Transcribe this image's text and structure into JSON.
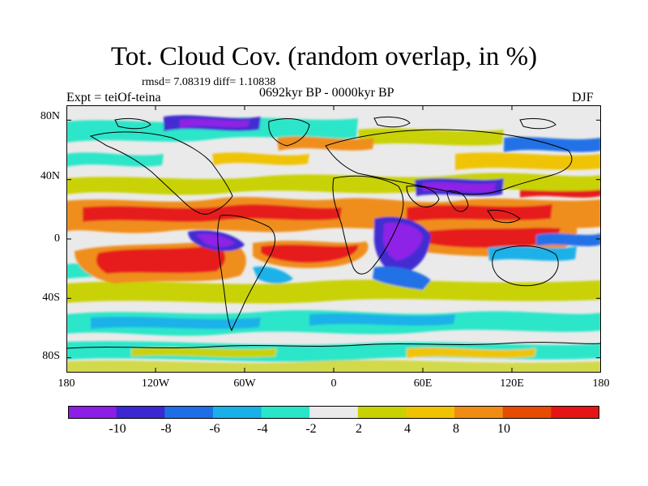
{
  "header": {
    "title": "Tot. Cloud Cov. (random overlap, in %)",
    "stats": "rmsd= 7.08319 diff= 1.10838",
    "experiment": "Expt = teiOf-teina",
    "period": "0692kyr BP - 0000kyr BP",
    "season": "DJF"
  },
  "axes": {
    "y_ticks": [
      "80N",
      "40N",
      "0",
      "40S",
      "80S"
    ],
    "x_ticks": [
      "180",
      "120W",
      "60W",
      "0",
      "60E",
      "120E",
      "180"
    ]
  },
  "colorbar": {
    "colors": [
      "#8c1ee6",
      "#3c28d2",
      "#1e6ee6",
      "#18b0e8",
      "#28e6c8",
      "#eaeaea",
      "#c8d200",
      "#f0c300",
      "#f08c14",
      "#e64b00",
      "#e61414"
    ],
    "labels": [
      "-10",
      "-8",
      "-6",
      "-4",
      "-2",
      "2",
      "4",
      "8",
      "10"
    ]
  }
}
